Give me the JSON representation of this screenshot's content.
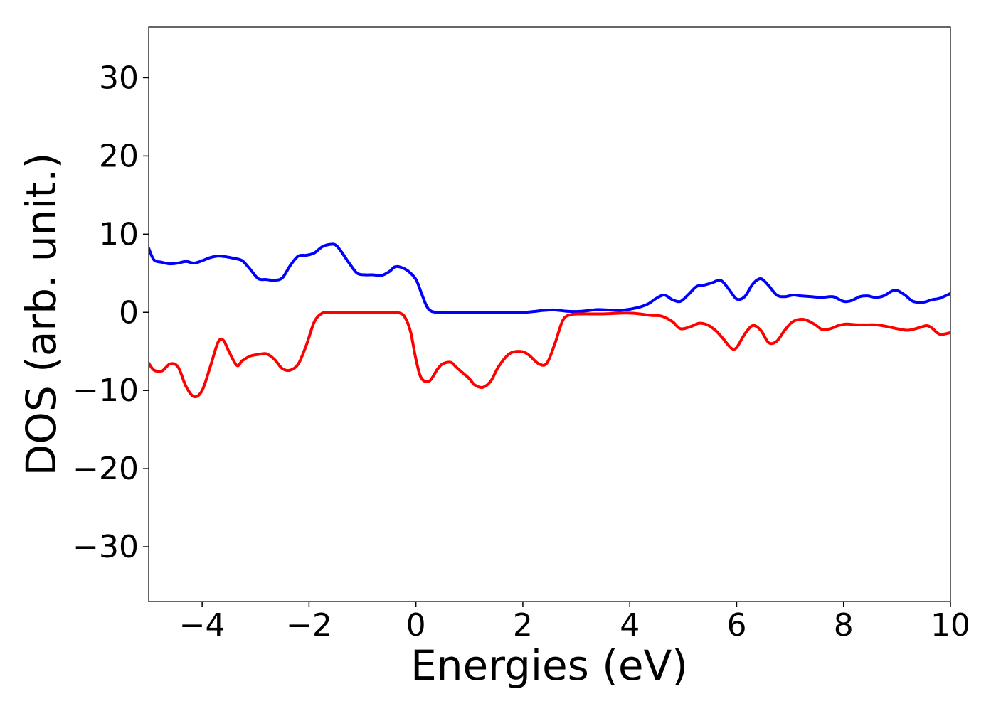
{
  "chart_data": {
    "type": "line",
    "title": "",
    "xlabel": "Energies (eV)",
    "ylabel": "DOS (arb. unit.)",
    "xlim": [
      -5,
      10
    ],
    "ylim": [
      -37,
      36.5
    ],
    "xticks": [
      -4,
      -2,
      0,
      2,
      4,
      6,
      8,
      10
    ],
    "yticks": [
      30,
      20,
      10,
      0,
      -10,
      -20,
      -30
    ],
    "xtick_labels": [
      "−4",
      "−2",
      "0",
      "2",
      "4",
      "6",
      "8",
      "10"
    ],
    "ytick_labels": [
      "30",
      "20",
      "10",
      "0",
      "−10",
      "−20",
      "−30"
    ],
    "grid": false,
    "series": [
      {
        "color": "#0000ff",
        "x": [
          -5.0,
          -4.9,
          -4.75,
          -4.6,
          -4.45,
          -4.3,
          -4.15,
          -4.0,
          -3.85,
          -3.7,
          -3.55,
          -3.4,
          -3.25,
          -3.1,
          -2.95,
          -2.8,
          -2.65,
          -2.5,
          -2.35,
          -2.2,
          -2.05,
          -1.9,
          -1.75,
          -1.6,
          -1.5,
          -1.4,
          -1.25,
          -1.1,
          -0.95,
          -0.8,
          -0.65,
          -0.5,
          -0.4,
          -0.3,
          -0.15,
          0.0,
          0.1,
          0.2,
          0.3,
          0.5,
          0.7,
          1.0,
          1.5,
          2.0,
          2.2,
          2.4,
          2.6,
          2.8,
          3.0,
          3.2,
          3.4,
          3.6,
          3.8,
          4.0,
          4.2,
          4.35,
          4.5,
          4.65,
          4.8,
          4.95,
          5.1,
          5.25,
          5.4,
          5.55,
          5.7,
          5.85,
          6.0,
          6.15,
          6.3,
          6.45,
          6.6,
          6.75,
          6.9,
          7.05,
          7.2,
          7.4,
          7.6,
          7.8,
          8.0,
          8.15,
          8.3,
          8.45,
          8.6,
          8.75,
          8.9,
          9.0,
          9.15,
          9.3,
          9.5,
          9.65,
          9.8,
          10.0
        ],
        "y": [
          8.2,
          6.7,
          6.4,
          6.2,
          6.3,
          6.5,
          6.3,
          6.6,
          7.0,
          7.2,
          7.1,
          6.9,
          6.6,
          5.5,
          4.3,
          4.2,
          4.1,
          4.4,
          6.0,
          7.2,
          7.3,
          7.6,
          8.4,
          8.7,
          8.6,
          7.8,
          6.3,
          5.0,
          4.8,
          4.8,
          4.7,
          5.2,
          5.8,
          5.8,
          5.3,
          4.2,
          2.5,
          0.8,
          0.1,
          0.0,
          0.0,
          0.0,
          0.0,
          0.0,
          0.1,
          0.25,
          0.3,
          0.15,
          0.1,
          0.2,
          0.35,
          0.3,
          0.25,
          0.4,
          0.7,
          1.1,
          1.8,
          2.2,
          1.6,
          1.4,
          2.3,
          3.3,
          3.5,
          3.8,
          4.1,
          3.0,
          1.7,
          2.0,
          3.6,
          4.3,
          3.4,
          2.2,
          2.0,
          2.2,
          2.1,
          2.0,
          1.9,
          2.0,
          1.4,
          1.5,
          2.0,
          2.1,
          1.9,
          2.1,
          2.7,
          2.8,
          2.2,
          1.4,
          1.3,
          1.6,
          1.8,
          2.4
        ]
      },
      {
        "color": "#ff0000",
        "x": [
          -5.0,
          -4.9,
          -4.75,
          -4.6,
          -4.45,
          -4.3,
          -4.15,
          -4.0,
          -3.85,
          -3.7,
          -3.6,
          -3.5,
          -3.35,
          -3.25,
          -3.1,
          -2.95,
          -2.8,
          -2.65,
          -2.5,
          -2.35,
          -2.2,
          -2.05,
          -1.9,
          -1.75,
          -1.6,
          -1.4,
          -1.0,
          -0.5,
          -0.3,
          -0.2,
          -0.1,
          0.0,
          0.1,
          0.25,
          0.4,
          0.5,
          0.65,
          0.75,
          0.85,
          1.0,
          1.1,
          1.25,
          1.4,
          1.55,
          1.75,
          1.95,
          2.1,
          2.3,
          2.45,
          2.6,
          2.75,
          2.9,
          3.1,
          3.5,
          4.0,
          4.4,
          4.6,
          4.8,
          4.95,
          5.15,
          5.3,
          5.45,
          5.6,
          5.75,
          5.9,
          6.0,
          6.15,
          6.3,
          6.45,
          6.6,
          6.75,
          6.9,
          7.05,
          7.25,
          7.45,
          7.6,
          7.75,
          7.9,
          8.05,
          8.25,
          8.45,
          8.6,
          8.8,
          9.0,
          9.2,
          9.4,
          9.55,
          9.65,
          9.8,
          10.0
        ],
        "y": [
          -6.5,
          -7.4,
          -7.5,
          -6.6,
          -7.0,
          -9.5,
          -10.8,
          -10.0,
          -7.0,
          -3.8,
          -3.6,
          -5.0,
          -6.8,
          -6.2,
          -5.6,
          -5.4,
          -5.3,
          -6.0,
          -7.2,
          -7.4,
          -6.6,
          -4.2,
          -1.2,
          -0.1,
          0.0,
          0.0,
          0.0,
          0.0,
          -0.1,
          -0.7,
          -2.5,
          -6.0,
          -8.4,
          -8.8,
          -7.3,
          -6.6,
          -6.4,
          -7.0,
          -7.6,
          -8.5,
          -9.3,
          -9.6,
          -8.8,
          -6.9,
          -5.3,
          -5.0,
          -5.4,
          -6.6,
          -6.5,
          -4.0,
          -1.0,
          -0.3,
          -0.2,
          -0.2,
          -0.1,
          -0.4,
          -0.5,
          -1.2,
          -2.1,
          -1.8,
          -1.4,
          -1.6,
          -2.3,
          -3.4,
          -4.6,
          -4.5,
          -2.8,
          -1.7,
          -2.3,
          -3.9,
          -3.7,
          -2.3,
          -1.2,
          -0.9,
          -1.5,
          -2.2,
          -2.1,
          -1.7,
          -1.5,
          -1.6,
          -1.6,
          -1.6,
          -1.8,
          -2.1,
          -2.3,
          -2.0,
          -1.7,
          -2.0,
          -2.8,
          -2.6
        ]
      }
    ]
  }
}
